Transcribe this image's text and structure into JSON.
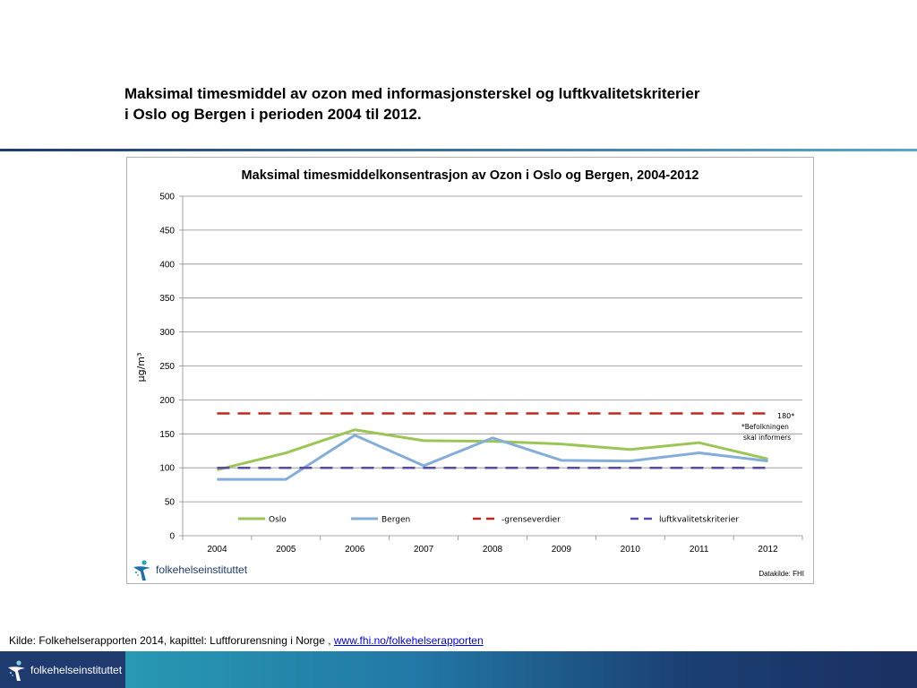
{
  "slide": {
    "title_line1": "Maksimal timesmiddel av ozon med informasjonsterskel og luftkvalitetskriterier",
    "title_line2": "i Oslo og Bergen i perioden 2004 til 2012."
  },
  "chart_data": {
    "type": "line",
    "title": "Maksimal timesmiddelkonsentrasjon av Ozon i Oslo og Bergen, 2004-2012",
    "xlabel": "",
    "ylabel": "µg/m³",
    "x": [
      "2004",
      "2005",
      "2006",
      "2007",
      "2008",
      "2009",
      "2010",
      "2011",
      "2012"
    ],
    "ylim": [
      0,
      500
    ],
    "yticks": [
      "0",
      "50",
      "100",
      "150",
      "200",
      "250",
      "300",
      "350",
      "400",
      "450",
      "500"
    ],
    "grid": true,
    "legend_position": "bottom",
    "series": [
      {
        "name": "Oslo",
        "values": [
          97,
          122,
          156,
          140,
          139,
          135,
          127,
          137,
          113
        ],
        "color": "#9bc655",
        "style": "solid"
      },
      {
        "name": "Bergen",
        "values": [
          83,
          83,
          148,
          103,
          144,
          111,
          110,
          122,
          110
        ],
        "color": "#84aed9",
        "style": "solid"
      },
      {
        "name": "grenseverdier",
        "values": [
          180,
          180,
          180,
          180,
          180,
          180,
          180,
          180,
          180
        ],
        "color": "#c0281c",
        "style": "dashed"
      },
      {
        "name": "luftkvalitetskriterier",
        "values": [
          100,
          100,
          100,
          100,
          100,
          100,
          100,
          100,
          100
        ],
        "color": "#5a4aa8",
        "style": "dashed"
      }
    ],
    "annotation": {
      "value": "180*",
      "note_line1": "*Befolkningen",
      "note_line2": "skal informers"
    },
    "legend_labels": {
      "grenseverdier": "-grenseverdier"
    }
  },
  "chart_footer": {
    "logo_text": "folkehelseinstituttet",
    "datakilde": "Datakilde: FHI"
  },
  "source": {
    "prefix": "Kilde: Folkehelserapporten 2014, kapittel: Luftforurensning i Norge , ",
    "link_text": "www.fhi.no/folkehelserapporten"
  },
  "footer": {
    "logo_text": "folkehelseinstituttet"
  },
  "icons": {
    "logo": "fhi-figure-icon"
  }
}
